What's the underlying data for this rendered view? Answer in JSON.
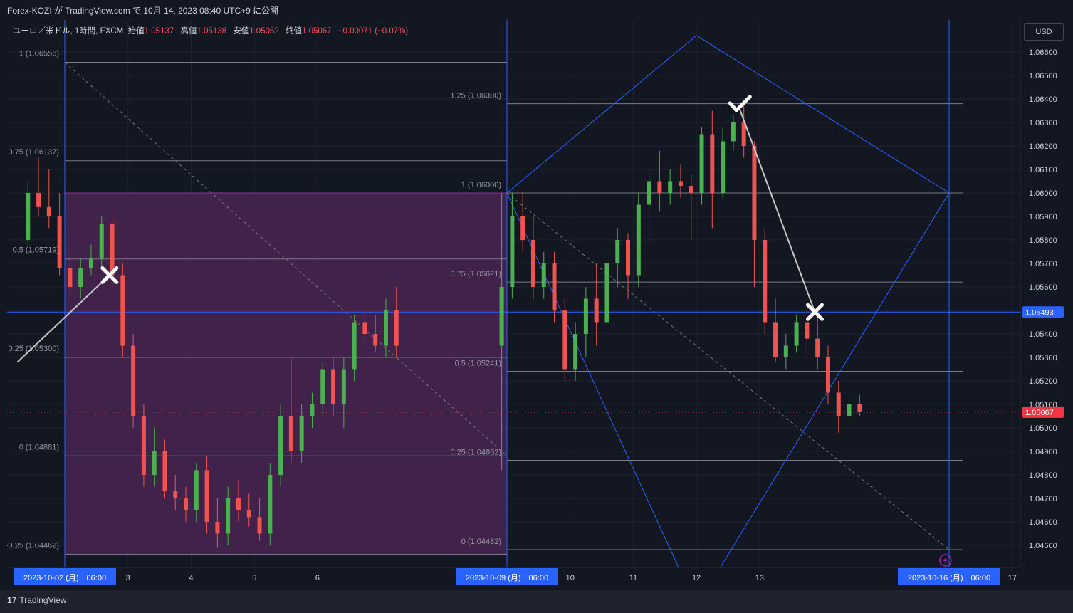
{
  "header": {
    "publisher_line": "Forex-KOZI が TradingView.com で 10月 14, 2023 08:40 UTC+9 に公開"
  },
  "legend": {
    "symbol": "ユーロ／米ドル, 1時間, FXCM",
    "open_label": "始値",
    "open_value": "1.05137",
    "high_label": "高値",
    "high_value": "1.05138",
    "low_label": "安値",
    "low_value": "1.05052",
    "close_label": "終値",
    "close_value": "1.05067",
    "change": "−0.00071 (−0.07%)"
  },
  "currency_button": "USD",
  "footer": {
    "logo": "TradingView"
  },
  "colors": {
    "background": "#131722",
    "up": "#4caf50",
    "down": "#ef5350",
    "fib_zone": "#4a2452",
    "line_blue": "#2962ff",
    "badge_blue": "#2962ff",
    "price_badge_red": "#f23645"
  },
  "chart_data": {
    "type": "candlestick",
    "symbol": "EUR/USD",
    "timeframe": "1h",
    "x_date_range": [
      "2023-10-01",
      "2023-10-16"
    ],
    "ylim": [
      1.0446,
      1.0667
    ],
    "y_ticks": [
      "1.06600",
      "1.06500",
      "1.06400",
      "1.06300",
      "1.06200",
      "1.06100",
      "1.06000",
      "1.05900",
      "1.05800",
      "1.05700",
      "1.05600",
      "1.05500",
      "1.05400",
      "1.05300",
      "1.05200",
      "1.05100",
      "1.05000",
      "1.04900",
      "1.04800",
      "1.04700",
      "1.04600",
      "1.04500"
    ],
    "x_ticks": [
      {
        "date": "2023-10-03",
        "label": "3"
      },
      {
        "date": "2023-10-04",
        "label": "4"
      },
      {
        "date": "2023-10-05",
        "label": "5"
      },
      {
        "date": "2023-10-06",
        "label": "6"
      },
      {
        "date": "2023-10-10",
        "label": "10"
      },
      {
        "date": "2023-10-11",
        "label": "11"
      },
      {
        "date": "2023-10-12",
        "label": "12"
      },
      {
        "date": "2023-10-13",
        "label": "13"
      },
      {
        "date": "2023-10-17",
        "label": "17"
      }
    ],
    "date_badges": [
      {
        "date": "2023-10-02",
        "label": "2023-10-02 (月)　06:00"
      },
      {
        "date": "2023-10-09",
        "label": "2023-10-09 (月)　06:00"
      },
      {
        "date": "2023-10-16",
        "label": "2023-10-16 (月)　06:00"
      }
    ],
    "price_badges": [
      {
        "price": 1.05493,
        "label": "1.05493",
        "color": "#2962ff"
      },
      {
        "price": 1.05067,
        "label": "1.05067",
        "color": "#f23645"
      }
    ],
    "horizontal_line": {
      "price": 1.05493
    },
    "vertical_lines": [
      "2023-10-02",
      "2023-10-09",
      "2023-10-16"
    ],
    "fib_left": {
      "x_start": "2023-10-02",
      "x_end": "2023-10-09",
      "zone_top": 1.06,
      "zone_bottom": 1.04462,
      "levels": [
        {
          "price": 1.06556,
          "label": "1 (1.06556)"
        },
        {
          "price": 1.06137,
          "label": "0.75 (1.06137)"
        },
        {
          "price": 1.05719,
          "label": "0.5 (1.05719)"
        },
        {
          "price": 1.053,
          "label": "0.25 (1.05300)"
        },
        {
          "price": 1.04881,
          "label": "0 (1.04881)"
        },
        {
          "price": 1.04462,
          "label": "-0.25 (1.04462)"
        }
      ]
    },
    "fib_right": {
      "x_start": "2023-10-09",
      "x_end": "2023-10-16",
      "levels": [
        {
          "price": 1.0638,
          "label": "1.25 (1.06380)"
        },
        {
          "price": 1.06,
          "label": "1 (1.06000)"
        },
        {
          "price": 1.05621,
          "label": "0.75 (1.05621)"
        },
        {
          "price": 1.05241,
          "label": "0.5 (1.05241)"
        },
        {
          "price": 1.04862,
          "label": "0.25 (1.04862)"
        },
        {
          "price": 1.04482,
          "label": "0 (1.04482)"
        }
      ]
    },
    "diamond": {
      "left": {
        "date": "2023-10-09",
        "price": 1.06
      },
      "top": {
        "date": "2023-10-12",
        "price": 1.0667
      },
      "right": {
        "date": "2023-10-16",
        "price": 1.06
      },
      "bottom": {
        "date": "2023-10-12",
        "price": 1.0424
      }
    },
    "markers": [
      {
        "type": "cross",
        "date": "2023-10-02T17:00",
        "price": 1.0565
      },
      {
        "type": "check",
        "date": "2023-10-12T16:00",
        "price": 1.0637
      },
      {
        "type": "cross",
        "date": "2023-10-13T21:00",
        "price": 1.05493
      }
    ],
    "path_lines": [
      {
        "from": {
          "date": "2023-10-01T06:00",
          "price": 1.0528
        },
        "to": {
          "date": "2023-10-02T17:00",
          "price": 1.0565
        }
      },
      {
        "from": {
          "date": "2023-10-12T16:00",
          "price": 1.0637
        },
        "to": {
          "date": "2023-10-13T21:00",
          "price": 1.05493
        }
      }
    ],
    "dashed_lines": [
      {
        "from": {
          "date": "2023-10-02",
          "price": 1.06556
        },
        "to": {
          "date": "2023-10-09",
          "price": 1.04881
        }
      },
      {
        "from": {
          "date": "2023-10-09",
          "price": 1.06
        },
        "to": {
          "date": "2023-10-16",
          "price": 1.04482
        }
      }
    ],
    "close_line": {
      "price": 1.05067
    },
    "candles": [
      [
        "2023-10-01T10:00",
        1.058,
        1.0605,
        1.0578,
        1.06
      ],
      [
        "2023-10-01T14:00",
        1.06,
        1.0615,
        1.059,
        1.0594
      ],
      [
        "2023-10-01T18:00",
        1.0594,
        1.061,
        1.0585,
        1.059
      ],
      [
        "2023-10-01T22:00",
        1.059,
        1.06,
        1.0565,
        1.0568
      ],
      [
        "2023-10-02T02:00",
        1.0568,
        1.0575,
        1.0555,
        1.056
      ],
      [
        "2023-10-02T06:00",
        1.056,
        1.0572,
        1.0555,
        1.0568
      ],
      [
        "2023-10-02T10:00",
        1.0568,
        1.0578,
        1.0565,
        1.0572
      ],
      [
        "2023-10-02T14:00",
        1.0572,
        1.059,
        1.0568,
        1.0587
      ],
      [
        "2023-10-02T18:00",
        1.0587,
        1.0592,
        1.056,
        1.0565
      ],
      [
        "2023-10-02T22:00",
        1.0565,
        1.057,
        1.053,
        1.0535
      ],
      [
        "2023-10-03T02:00",
        1.0535,
        1.054,
        1.05,
        1.0505
      ],
      [
        "2023-10-03T06:00",
        1.0505,
        1.051,
        1.0475,
        1.048
      ],
      [
        "2023-10-03T10:00",
        1.048,
        1.05,
        1.0475,
        1.049
      ],
      [
        "2023-10-03T14:00",
        1.049,
        1.0495,
        1.047,
        1.0473
      ],
      [
        "2023-10-03T18:00",
        1.0473,
        1.048,
        1.0465,
        1.047
      ],
      [
        "2023-10-03T22:00",
        1.047,
        1.0475,
        1.046,
        1.0465
      ],
      [
        "2023-10-04T02:00",
        1.0465,
        1.0485,
        1.046,
        1.0482
      ],
      [
        "2023-10-04T06:00",
        1.0482,
        1.0488,
        1.0455,
        1.046
      ],
      [
        "2023-10-04T10:00",
        1.046,
        1.047,
        1.0449,
        1.0455
      ],
      [
        "2023-10-04T14:00",
        1.0455,
        1.0475,
        1.045,
        1.047
      ],
      [
        "2023-10-04T18:00",
        1.047,
        1.0478,
        1.046,
        1.0465
      ],
      [
        "2023-10-04T22:00",
        1.0465,
        1.0472,
        1.0458,
        1.0462
      ],
      [
        "2023-10-05T02:00",
        1.0462,
        1.047,
        1.0452,
        1.0455
      ],
      [
        "2023-10-05T06:00",
        1.0455,
        1.0485,
        1.045,
        1.048
      ],
      [
        "2023-10-05T10:00",
        1.048,
        1.051,
        1.0475,
        1.0505
      ],
      [
        "2023-10-05T14:00",
        1.0505,
        1.053,
        1.0485,
        1.049
      ],
      [
        "2023-10-05T18:00",
        1.049,
        1.051,
        1.0485,
        1.0505
      ],
      [
        "2023-10-05T22:00",
        1.0505,
        1.0515,
        1.05,
        1.051
      ],
      [
        "2023-10-06T02:00",
        1.051,
        1.0528,
        1.0505,
        1.0525
      ],
      [
        "2023-10-06T06:00",
        1.0525,
        1.053,
        1.0505,
        1.051
      ],
      [
        "2023-10-06T10:00",
        1.051,
        1.053,
        1.05,
        1.0525
      ],
      [
        "2023-10-06T14:00",
        1.0525,
        1.0548,
        1.052,
        1.0545
      ],
      [
        "2023-10-06T18:00",
        1.0545,
        1.055,
        1.0535,
        1.054
      ],
      [
        "2023-10-06T22:00",
        1.054,
        1.0548,
        1.0532,
        1.0535
      ],
      [
        "2023-10-07T02:00",
        1.0535,
        1.0555,
        1.053,
        1.055
      ],
      [
        "2023-10-07T06:00",
        1.055,
        1.056,
        1.053,
        1.0535
      ],
      [
        "2023-10-08T22:00",
        1.0535,
        1.06,
        1.0482,
        1.056
      ],
      [
        "2023-10-09T02:00",
        1.056,
        1.06,
        1.0555,
        1.059
      ],
      [
        "2023-10-09T06:00",
        1.059,
        1.06,
        1.0575,
        1.058
      ],
      [
        "2023-10-09T10:00",
        1.058,
        1.059,
        1.0555,
        1.056
      ],
      [
        "2023-10-09T14:00",
        1.056,
        1.0575,
        1.0555,
        1.057
      ],
      [
        "2023-10-09T18:00",
        1.057,
        1.0575,
        1.0545,
        1.055
      ],
      [
        "2023-10-09T22:00",
        1.055,
        1.0555,
        1.052,
        1.0525
      ],
      [
        "2023-10-10T02:00",
        1.0525,
        1.0545,
        1.052,
        1.054
      ],
      [
        "2023-10-10T06:00",
        1.054,
        1.056,
        1.053,
        1.0555
      ],
      [
        "2023-10-10T10:00",
        1.0555,
        1.057,
        1.0535,
        1.0545
      ],
      [
        "2023-10-10T14:00",
        1.0545,
        1.0575,
        1.054,
        1.057
      ],
      [
        "2023-10-10T18:00",
        1.057,
        1.0585,
        1.056,
        1.058
      ],
      [
        "2023-10-10T22:00",
        1.058,
        1.0583,
        1.0555,
        1.0565
      ],
      [
        "2023-10-11T02:00",
        1.0565,
        1.06,
        1.056,
        1.0595
      ],
      [
        "2023-10-11T06:00",
        1.0595,
        1.061,
        1.058,
        1.0605
      ],
      [
        "2023-10-11T10:00",
        1.0605,
        1.0618,
        1.0592,
        1.06
      ],
      [
        "2023-10-11T14:00",
        1.06,
        1.061,
        1.0595,
        1.0605
      ],
      [
        "2023-10-11T18:00",
        1.0605,
        1.0612,
        1.0598,
        1.0603
      ],
      [
        "2023-10-11T22:00",
        1.0603,
        1.0608,
        1.058,
        1.06
      ],
      [
        "2023-10-12T02:00",
        1.06,
        1.0628,
        1.0595,
        1.0625
      ],
      [
        "2023-10-12T06:00",
        1.0625,
        1.0635,
        1.0585,
        1.06
      ],
      [
        "2023-10-12T10:00",
        1.06,
        1.0628,
        1.0598,
        1.0622
      ],
      [
        "2023-10-12T14:00",
        1.0622,
        1.0633,
        1.0618,
        1.063
      ],
      [
        "2023-10-12T18:00",
        1.063,
        1.0638,
        1.0615,
        1.062
      ],
      [
        "2023-10-12T22:00",
        1.062,
        1.0622,
        1.056,
        1.058
      ],
      [
        "2023-10-13T02:00",
        1.058,
        1.0585,
        1.054,
        1.0545
      ],
      [
        "2023-10-13T06:00",
        1.0545,
        1.0555,
        1.0528,
        1.053
      ],
      [
        "2023-10-13T10:00",
        1.053,
        1.054,
        1.0525,
        1.0535
      ],
      [
        "2023-10-13T14:00",
        1.0535,
        1.0548,
        1.0532,
        1.0545
      ],
      [
        "2023-10-13T18:00",
        1.0545,
        1.0555,
        1.053,
        1.0538
      ],
      [
        "2023-10-13T22:00",
        1.0538,
        1.0548,
        1.0525,
        1.053
      ],
      [
        "2023-10-14T02:00",
        1.053,
        1.0535,
        1.051,
        1.0515
      ],
      [
        "2023-10-14T06:00",
        1.0515,
        1.052,
        1.0498,
        1.0505
      ],
      [
        "2023-10-14T10:00",
        1.0505,
        1.0513,
        1.05,
        1.051
      ],
      [
        "2023-10-14T14:00",
        1.051,
        1.0514,
        1.0505,
        1.0507
      ]
    ]
  }
}
